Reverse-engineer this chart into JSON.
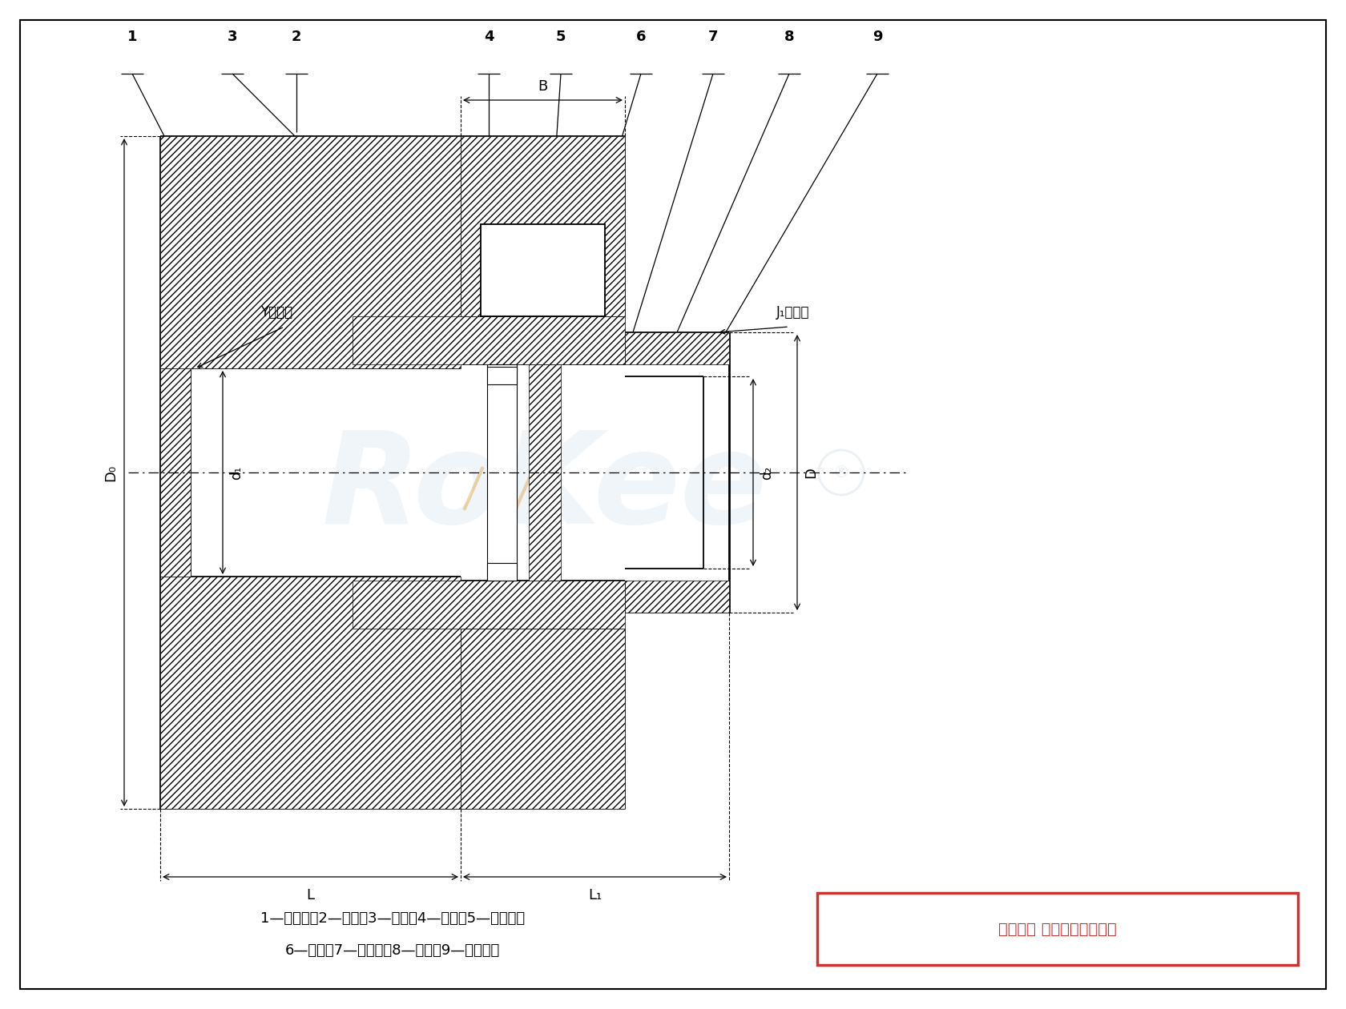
{
  "bg_color": "#ffffff",
  "line_color": "#000000",
  "wm_color": "#c8dcea",
  "wm_orange": "#d4900a",
  "caption_line1": "1—制动轮；2—螺栓；3—垫圈；4—外套；5—内挡板；",
  "caption_line2": "6—柱销；7—外挡圈；8—挡圈；9—半联轴器",
  "copyright_text": "版权所有 侵权必被严厉追究",
  "shaft_left": "Y型轴孔",
  "shaft_right": "J₁型轴孔",
  "dim_B": "B",
  "dim_L": "L",
  "dim_L1": "L₁",
  "dim_D0": "D₀",
  "dim_d1": "d₁",
  "dim_d2": "d₂",
  "dim_D": "D"
}
